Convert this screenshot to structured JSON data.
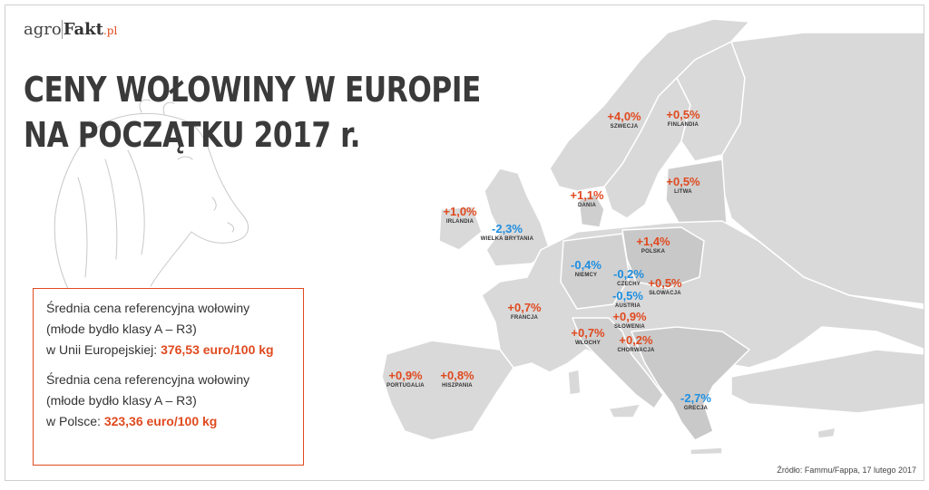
{
  "logo": {
    "part1": "agro",
    "part2": "Fakt",
    "part3": ".pl"
  },
  "title": {
    "line1": "CENY WOŁOWINY W EUROPIE",
    "line2": "NA POCZĄTKU 2017 r."
  },
  "info": {
    "eu": {
      "line1": "Średnia cena referencyjna wołowiny",
      "line2": "(młode bydło klasy A – R3)",
      "prefix": "w Unii Europejskiej:",
      "value": "376,53 euro/100 kg"
    },
    "pl": {
      "line1": "Średnia cena referencyjna wołowiny",
      "line2": "(młode bydło klasy A – R3)",
      "prefix": "w Polsce:",
      "value": "323,36 euro/100 kg"
    }
  },
  "countries": [
    {
      "name": "IRLANDIA",
      "change": "+1,0%",
      "trend": "up"
    },
    {
      "name": "WIELKA BRYTANIA",
      "change": "-2,3%",
      "trend": "down"
    },
    {
      "name": "DANIA",
      "change": "+1,1%",
      "trend": "up"
    },
    {
      "name": "SZWECJA",
      "change": "+4,0%",
      "trend": "up"
    },
    {
      "name": "FINLANDIA",
      "change": "+0,5%",
      "trend": "up"
    },
    {
      "name": "LITWA",
      "change": "+0,5%",
      "trend": "up"
    },
    {
      "name": "POLSKA",
      "change": "+1,4%",
      "trend": "up"
    },
    {
      "name": "NIEMCY",
      "change": "-0,4%",
      "trend": "down"
    },
    {
      "name": "CZECHY",
      "change": "-0,2%",
      "trend": "down"
    },
    {
      "name": "SŁOWACJA",
      "change": "+0,5%",
      "trend": "up"
    },
    {
      "name": "AUSTRIA",
      "change": "-0,5%",
      "trend": "down"
    },
    {
      "name": "FRANCJA",
      "change": "+0,7%",
      "trend": "up"
    },
    {
      "name": "SŁOWENIA",
      "change": "+0,9%",
      "trend": "up"
    },
    {
      "name": "WŁOCHY",
      "change": "+0,7%",
      "trend": "up"
    },
    {
      "name": "CHORWACJA",
      "change": "+0,2%",
      "trend": "up"
    },
    {
      "name": "PORTUGALIA",
      "change": "+0,9%",
      "trend": "up"
    },
    {
      "name": "HISZPANIA",
      "change": "+0,8%",
      "trend": "up"
    },
    {
      "name": "GRECJA",
      "change": "-2,7%",
      "trend": "down"
    }
  ],
  "colors": {
    "up": "#e04a1f",
    "down": "#1e8ee0",
    "land": "#d8d8d8",
    "land_dark": "#bdbdbd",
    "accent": "#e04a1f"
  },
  "source": "Źródło: Fammu/Fappa, 17 lutego 2017"
}
